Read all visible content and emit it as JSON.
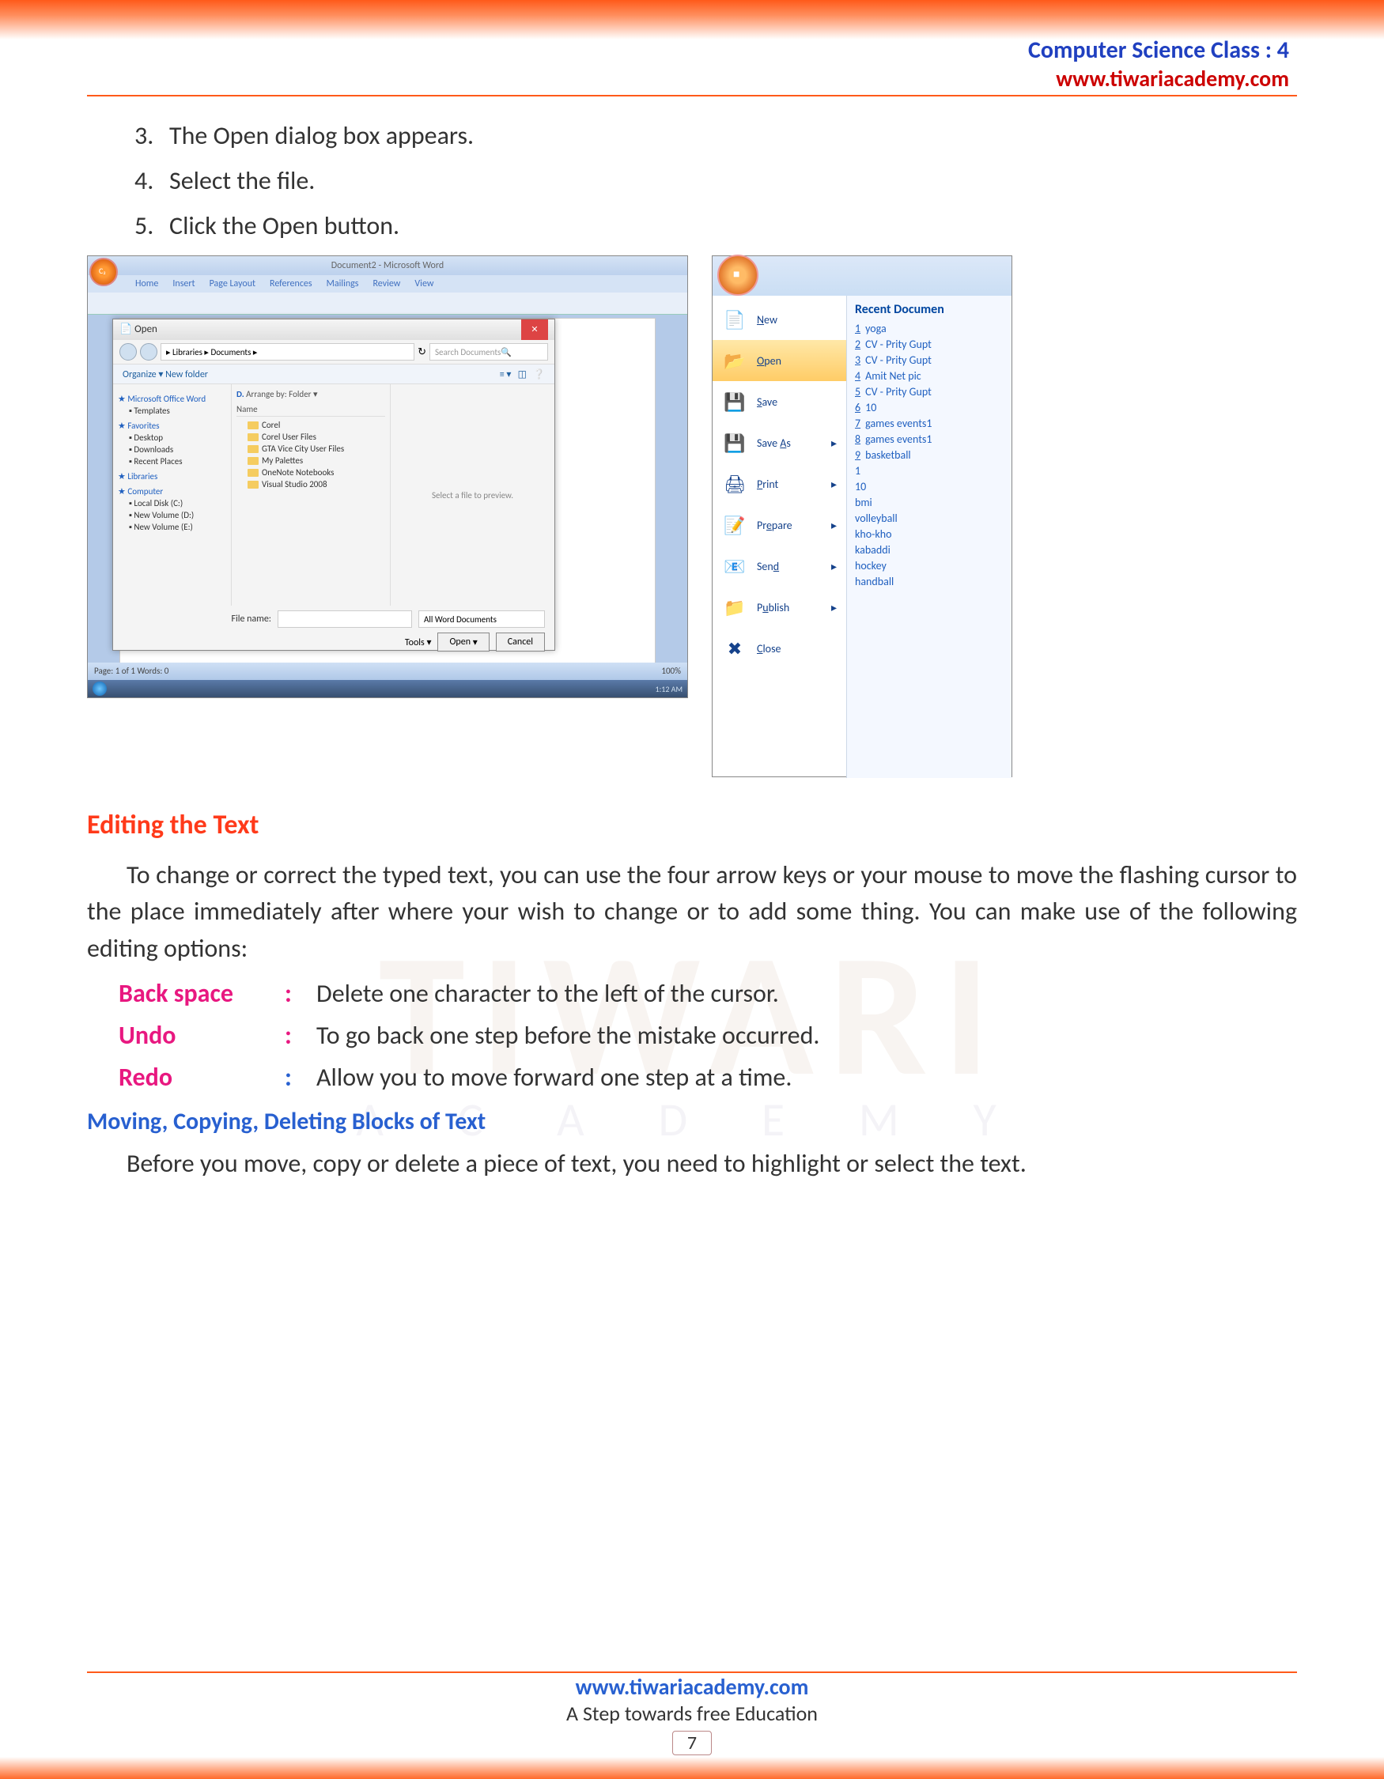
{
  "header": {
    "title": "Computer Science Class : 4",
    "url": "www.tiwariacademy.com"
  },
  "steps": [
    {
      "num": "3.",
      "text": "The Open dialog box appears."
    },
    {
      "num": "4.",
      "text": "Select the file."
    },
    {
      "num": "5.",
      "text": "Click the Open button."
    }
  ],
  "word_window": {
    "title": "Document2 - Microsoft Word",
    "tabs": [
      "Home",
      "Insert",
      "Page Layout",
      "References",
      "Mailings",
      "Review",
      "View"
    ],
    "status_left": "Page: 1 of 1    Words: 0",
    "status_right": "100%",
    "taskbar_time": "1:12 AM"
  },
  "open_dialog": {
    "title": "Open",
    "path": "▸ Libraries ▸ Documents ▸",
    "search_placeholder": "Search Documents",
    "toolbar_left": "Organize ▾     New folder",
    "arrange_label": "Arrange by:  Folder ▾",
    "name_hdr": "Name",
    "nav_groups": [
      {
        "label": "Microsoft Office Word",
        "items": [
          "Templates"
        ]
      },
      {
        "label": "Favorites",
        "items": [
          "Desktop",
          "Downloads",
          "Recent Places"
        ]
      },
      {
        "label": "Libraries",
        "items": []
      },
      {
        "label": "Computer",
        "items": [
          "Local Disk (C:)",
          "New Volume (D:)",
          "New Volume (E:)"
        ]
      }
    ],
    "folders": [
      "Corel",
      "Corel User Files",
      "GTA Vice City User Files",
      "My Palettes",
      "OneNote Notebooks",
      "Visual Studio 2008"
    ],
    "preview_msg": "Select a file to preview.",
    "file_name_label": "File name:",
    "filter": "All Word Documents",
    "tools": "Tools  ▾",
    "open_btn": "Open",
    "cancel_btn": "Cancel"
  },
  "office_menu": {
    "items": [
      {
        "label": "New",
        "u": "N",
        "rest": "ew",
        "icon": "📄",
        "arrow": false,
        "sel": false
      },
      {
        "label": "Open",
        "u": "O",
        "rest": "pen",
        "icon": "📂",
        "arrow": false,
        "sel": true
      },
      {
        "label": "Save",
        "u": "S",
        "rest": "ave",
        "icon": "💾",
        "arrow": false,
        "sel": false
      },
      {
        "label": "Save As",
        "u": "A",
        "pre": "Save ",
        "rest": "s",
        "icon": "💾",
        "arrow": true,
        "sel": false
      },
      {
        "label": "Print",
        "u": "P",
        "rest": "rint",
        "icon": "🖨",
        "arrow": true,
        "sel": false
      },
      {
        "label": "Prepare",
        "u": "e",
        "pre": "Pr",
        "rest": "pare",
        "icon": "📝",
        "arrow": true,
        "sel": false
      },
      {
        "label": "Send",
        "u": "d",
        "pre": "Sen",
        "rest": "",
        "icon": "📧",
        "arrow": true,
        "sel": false
      },
      {
        "label": "Publish",
        "u": "u",
        "pre": "P",
        "rest": "blish",
        "icon": "📁",
        "arrow": true,
        "sel": false
      },
      {
        "label": "Close",
        "u": "C",
        "rest": "lose",
        "icon": "✖",
        "arrow": false,
        "sel": false
      }
    ],
    "recent_header": "Recent Documen",
    "recent": [
      {
        "n": "1",
        "t": "yoga"
      },
      {
        "n": "2",
        "t": "CV - Prity Gupt"
      },
      {
        "n": "3",
        "t": "CV - Prity Gupt"
      },
      {
        "n": "4",
        "t": "Amit Net pic"
      },
      {
        "n": "5",
        "t": "CV - Prity Gupt"
      },
      {
        "n": "6",
        "t": "10"
      },
      {
        "n": "7",
        "t": "games events1"
      },
      {
        "n": "8",
        "t": "games events1"
      },
      {
        "n": "9",
        "t": "basketball"
      },
      {
        "n": "",
        "t": "1"
      },
      {
        "n": "",
        "t": "10"
      },
      {
        "n": "",
        "t": "bmi"
      },
      {
        "n": "",
        "t": "volleyball"
      },
      {
        "n": "",
        "t": "kho-kho"
      },
      {
        "n": "",
        "t": "kabaddi"
      },
      {
        "n": "",
        "t": "hockey"
      },
      {
        "n": "",
        "t": "handball"
      }
    ]
  },
  "section_editing": {
    "heading": "Editing the Text",
    "para": "To change or correct the typed text, you can use the four arrow keys or your mouse to move the flashing cursor to the place immediately after where your wish to change or to add some thing. You can make use of the following editing options:",
    "rows": [
      {
        "key": "Back space",
        "desc": "Delete one character to the left of the cursor.",
        "colon_color": "pink"
      },
      {
        "key": "Undo",
        "desc": "To go back one step before the mistake occurred.",
        "colon_color": "pink"
      },
      {
        "key": "Redo",
        "desc": "Allow you to move forward one step at a time.",
        "colon_color": "blue"
      }
    ]
  },
  "section_moving": {
    "heading": "Moving, Copying, Deleting Blocks of Text",
    "para": "Before you move, copy or delete a piece of text, you need to highlight or select the text."
  },
  "watermark": {
    "big": "TIWARI",
    "sub": "A C A D E M Y"
  },
  "footer": {
    "url": "www.tiwariacademy.com",
    "tagline": "A Step towards free Education",
    "page": "7"
  },
  "colors": {
    "accent_orange": "#ff5a1a",
    "heading_blue": "#2860d0",
    "heading_red": "#ff3a1a",
    "pink": "#e81880",
    "link_blue": "#2040c0",
    "url_red": "#cc0000"
  }
}
